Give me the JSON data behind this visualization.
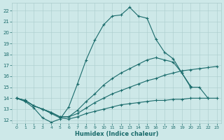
{
  "xlabel": "Humidex (Indice chaleur)",
  "xlim": [
    -0.5,
    23.5
  ],
  "ylim": [
    11.7,
    22.7
  ],
  "yticks": [
    12,
    13,
    14,
    15,
    16,
    17,
    18,
    19,
    20,
    21,
    22
  ],
  "xticks": [
    0,
    1,
    2,
    3,
    4,
    5,
    6,
    7,
    8,
    9,
    10,
    11,
    12,
    13,
    14,
    15,
    16,
    17,
    18,
    19,
    20,
    21,
    22,
    23
  ],
  "bg_color": "#cde8e8",
  "line_color": "#1a6b6b",
  "grid_color": "#aacccc",
  "lines": [
    {
      "x": [
        0,
        1,
        2,
        3,
        4,
        5,
        6,
        7,
        8,
        9,
        10,
        11,
        12,
        13,
        14,
        15,
        16,
        17,
        18,
        19,
        20,
        21,
        22
      ],
      "y": [
        14.0,
        13.7,
        13.1,
        12.2,
        11.8,
        12.1,
        13.2,
        15.3,
        17.5,
        19.3,
        20.7,
        21.5,
        21.6,
        22.3,
        21.5,
        21.3,
        19.4,
        18.2,
        17.6,
        16.3,
        15.0,
        15.0,
        14.0
      ]
    },
    {
      "x": [
        0,
        1,
        2,
        3,
        4,
        5,
        6,
        7,
        8,
        9,
        10,
        11,
        12,
        13,
        14,
        15,
        16,
        17,
        18,
        19,
        20
      ],
      "y": [
        14.0,
        13.8,
        13.3,
        13.0,
        12.7,
        12.3,
        12.3,
        12.9,
        13.7,
        14.4,
        15.2,
        15.8,
        16.3,
        16.7,
        17.1,
        17.5,
        17.7,
        17.5,
        17.3,
        16.3,
        15.1
      ]
    },
    {
      "x": [
        0,
        1,
        2,
        3,
        4,
        5,
        6,
        7,
        8,
        9,
        10,
        11,
        12,
        13,
        14,
        15,
        16,
        17,
        18,
        19,
        20,
        21,
        22,
        23
      ],
      "y": [
        14.0,
        13.8,
        13.3,
        13.0,
        12.7,
        12.3,
        12.3,
        12.6,
        13.1,
        13.6,
        14.0,
        14.4,
        14.7,
        15.0,
        15.3,
        15.6,
        15.8,
        16.1,
        16.3,
        16.5,
        16.6,
        16.7,
        16.8,
        16.9
      ]
    },
    {
      "x": [
        0,
        1,
        2,
        3,
        4,
        5,
        6,
        7,
        8,
        9,
        10,
        11,
        12,
        13,
        14,
        15,
        16,
        17,
        18,
        19,
        20,
        21,
        22,
        23
      ],
      "y": [
        14.0,
        13.8,
        13.3,
        13.0,
        12.6,
        12.2,
        12.1,
        12.3,
        12.6,
        12.8,
        13.0,
        13.2,
        13.4,
        13.5,
        13.6,
        13.7,
        13.8,
        13.8,
        13.9,
        13.9,
        14.0,
        14.0,
        14.0,
        14.0
      ]
    }
  ]
}
